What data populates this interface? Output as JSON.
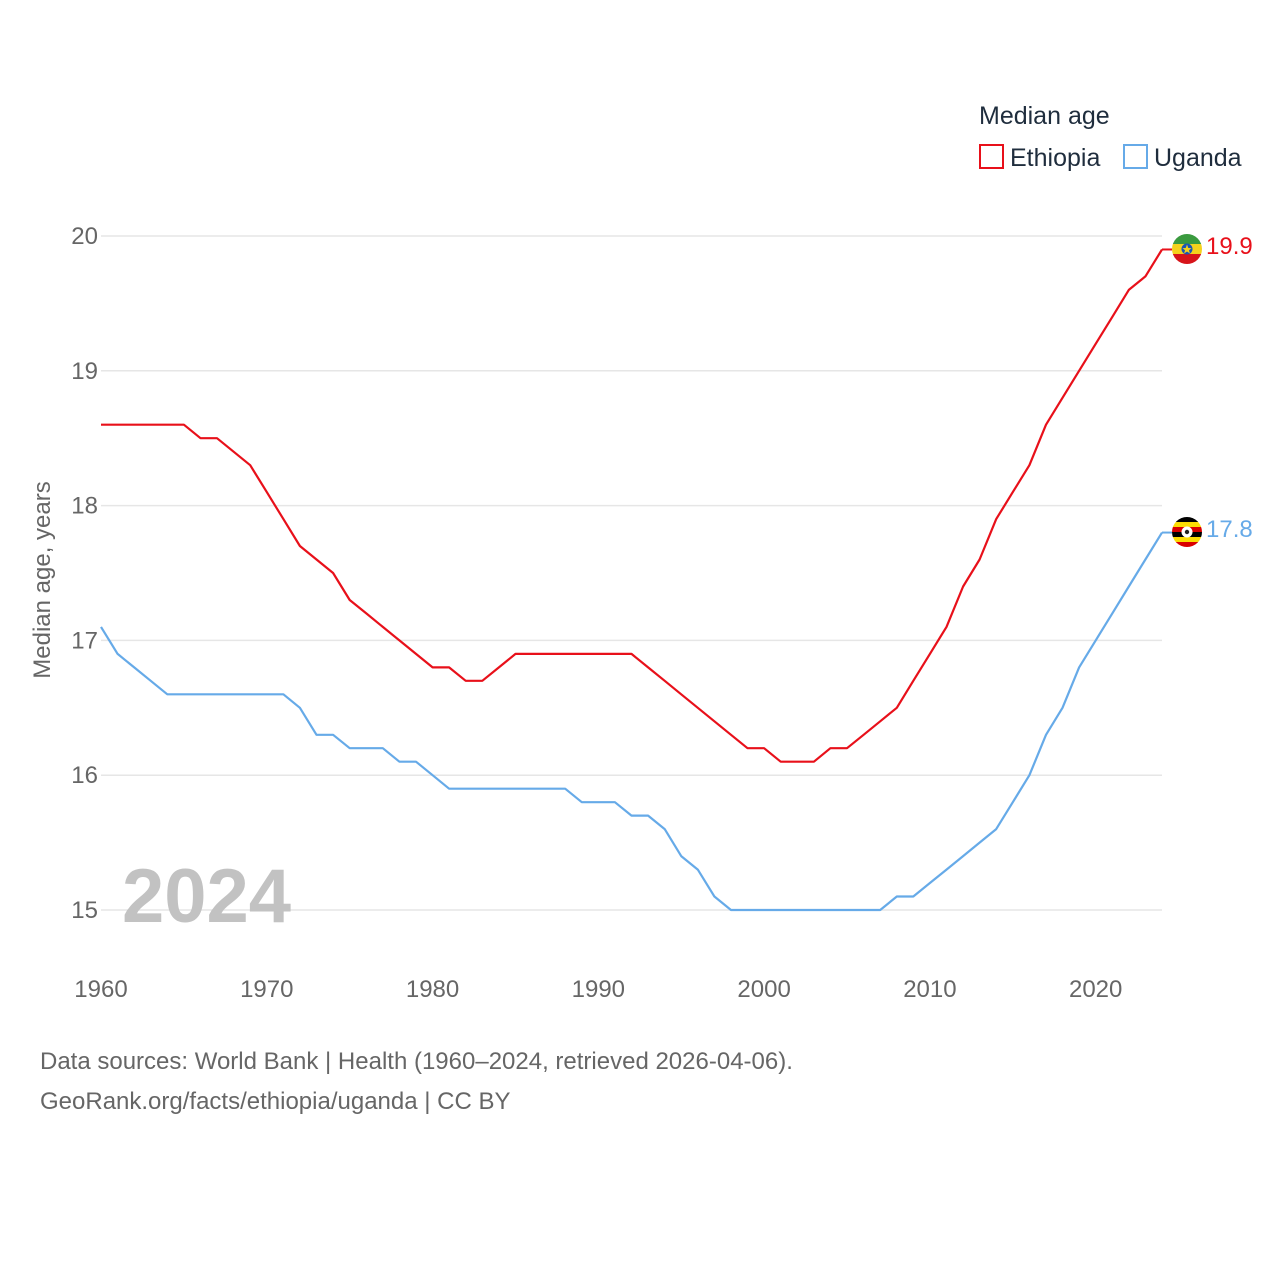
{
  "chart_data": {
    "type": "line",
    "title": "",
    "xlabel": "",
    "ylabel": "Median age, years",
    "ylim": [
      15,
      20
    ],
    "xlim": [
      1960,
      2024
    ],
    "yticks": [
      15,
      16,
      17,
      18,
      19,
      20
    ],
    "xticks": [
      1960,
      1970,
      1980,
      1990,
      2000,
      2010,
      2020
    ],
    "legend_title": "Median age",
    "legend_position": "top-right",
    "year_watermark": "2024",
    "x": [
      1960,
      1961,
      1962,
      1963,
      1964,
      1965,
      1966,
      1967,
      1968,
      1969,
      1970,
      1971,
      1972,
      1973,
      1974,
      1975,
      1976,
      1977,
      1978,
      1979,
      1980,
      1981,
      1982,
      1983,
      1984,
      1985,
      1986,
      1987,
      1988,
      1989,
      1990,
      1991,
      1992,
      1993,
      1994,
      1995,
      1996,
      1997,
      1998,
      1999,
      2000,
      2001,
      2002,
      2003,
      2004,
      2005,
      2006,
      2007,
      2008,
      2009,
      2010,
      2011,
      2012,
      2013,
      2014,
      2015,
      2016,
      2017,
      2018,
      2019,
      2020,
      2021,
      2022,
      2023,
      2024
    ],
    "series": [
      {
        "name": "Ethiopia",
        "color": "#e8101a",
        "end_label": "19.9",
        "values": [
          18.6,
          18.6,
          18.6,
          18.6,
          18.6,
          18.6,
          18.5,
          18.5,
          18.4,
          18.3,
          18.1,
          17.9,
          17.7,
          17.6,
          17.5,
          17.3,
          17.2,
          17.1,
          17.0,
          16.9,
          16.8,
          16.8,
          16.7,
          16.7,
          16.8,
          16.9,
          16.9,
          16.9,
          16.9,
          16.9,
          16.9,
          16.9,
          16.9,
          16.8,
          16.7,
          16.6,
          16.5,
          16.4,
          16.3,
          16.2,
          16.2,
          16.1,
          16.1,
          16.1,
          16.2,
          16.2,
          16.3,
          16.4,
          16.5,
          16.7,
          16.9,
          17.1,
          17.4,
          17.6,
          17.9,
          18.1,
          18.3,
          18.6,
          18.8,
          19.0,
          19.2,
          19.4,
          19.6,
          19.7,
          19.9
        ]
      },
      {
        "name": "Uganda",
        "color": "#66aae8",
        "end_label": "17.8",
        "values": [
          17.1,
          16.9,
          16.8,
          16.7,
          16.6,
          16.6,
          16.6,
          16.6,
          16.6,
          16.6,
          16.6,
          16.6,
          16.5,
          16.3,
          16.3,
          16.2,
          16.2,
          16.2,
          16.1,
          16.1,
          16.0,
          15.9,
          15.9,
          15.9,
          15.9,
          15.9,
          15.9,
          15.9,
          15.9,
          15.8,
          15.8,
          15.8,
          15.7,
          15.7,
          15.6,
          15.4,
          15.3,
          15.1,
          15.0,
          15.0,
          15.0,
          15.0,
          15.0,
          15.0,
          15.0,
          15.0,
          15.0,
          15.0,
          15.1,
          15.1,
          15.2,
          15.3,
          15.4,
          15.5,
          15.6,
          15.8,
          16.0,
          16.3,
          16.5,
          16.8,
          17.0,
          17.2,
          17.4,
          17.6,
          17.8
        ]
      }
    ]
  },
  "footer": {
    "sources": "Data sources: World Bank | Health (1960–2024, retrieved 2026-04-06).",
    "credit": "GeoRank.org/facts/ethiopia/uganda | CC BY"
  }
}
